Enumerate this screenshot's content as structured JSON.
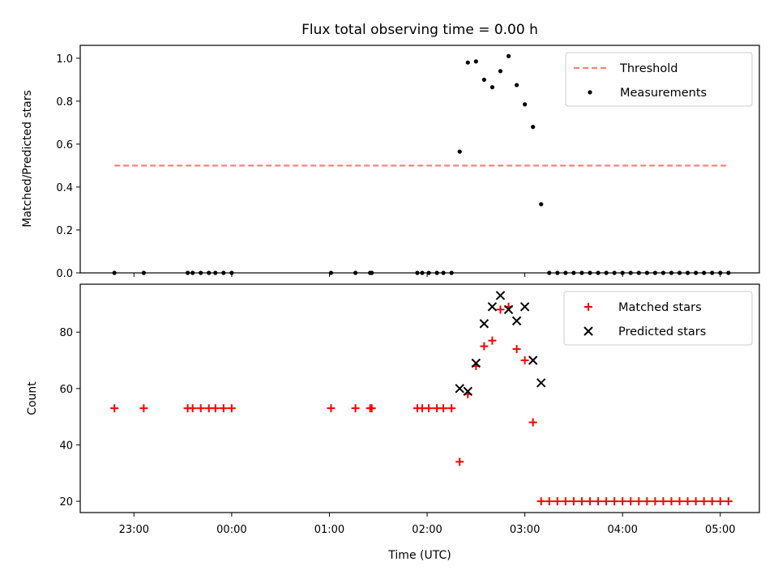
{
  "chart_data": [
    {
      "type": "scatter",
      "title": "Flux total observing time = 0.00 h",
      "xlabel": "",
      "ylabel": "Matched/Predicted stars",
      "ylim": [
        0,
        1.06
      ],
      "xlim": [
        "22:27",
        "05:24"
      ],
      "yticks": [
        0.0,
        0.2,
        0.4,
        0.6,
        0.8,
        1.0
      ],
      "ytick_labels": [
        "0.0",
        "0.2",
        "0.4",
        "0.6",
        "0.8",
        "1.0"
      ],
      "xticks": [
        "23:00",
        "00:00",
        "01:00",
        "02:00",
        "03:00",
        "04:00",
        "05:00"
      ],
      "show_xtick_labels": false,
      "legend_placement": "top-right",
      "series": [
        {
          "name": "Threshold",
          "kind": "line",
          "style": "dashed",
          "color": "#ff7f7f",
          "points": [
            {
              "x": "22:48",
              "y": 0.5
            },
            {
              "x": "05:05",
              "y": 0.5
            }
          ]
        },
        {
          "name": "Measurements",
          "kind": "scatter",
          "color": "#000000",
          "points": [
            {
              "x": "22:48",
              "y": 0
            },
            {
              "x": "23:06",
              "y": 0
            },
            {
              "x": "23:33",
              "y": 0
            },
            {
              "x": "23:36",
              "y": 0
            },
            {
              "x": "23:41",
              "y": 0
            },
            {
              "x": "23:46",
              "y": 0
            },
            {
              "x": "23:50",
              "y": 0
            },
            {
              "x": "23:55",
              "y": 0
            },
            {
              "x": "00:00",
              "y": 0
            },
            {
              "x": "01:01",
              "y": 0
            },
            {
              "x": "01:16",
              "y": 0
            },
            {
              "x": "01:25",
              "y": 0
            },
            {
              "x": "01:26",
              "y": 0
            },
            {
              "x": "01:54",
              "y": 0
            },
            {
              "x": "01:57",
              "y": 0
            },
            {
              "x": "02:01",
              "y": 0
            },
            {
              "x": "02:06",
              "y": 0
            },
            {
              "x": "02:10",
              "y": 0
            },
            {
              "x": "02:15",
              "y": 0
            },
            {
              "x": "02:20",
              "y": 0.565
            },
            {
              "x": "02:25",
              "y": 0.98
            },
            {
              "x": "02:30",
              "y": 0.985
            },
            {
              "x": "02:35",
              "y": 0.9
            },
            {
              "x": "02:40",
              "y": 0.865
            },
            {
              "x": "02:45",
              "y": 0.94
            },
            {
              "x": "02:50",
              "y": 1.01
            },
            {
              "x": "02:55",
              "y": 0.875
            },
            {
              "x": "03:00",
              "y": 0.785
            },
            {
              "x": "03:05",
              "y": 0.68
            },
            {
              "x": "03:10",
              "y": 0.32
            },
            {
              "x": "03:15",
              "y": 0
            },
            {
              "x": "03:20",
              "y": 0
            },
            {
              "x": "03:25",
              "y": 0
            },
            {
              "x": "03:30",
              "y": 0
            },
            {
              "x": "03:35",
              "y": 0
            },
            {
              "x": "03:40",
              "y": 0
            },
            {
              "x": "03:45",
              "y": 0
            },
            {
              "x": "03:50",
              "y": 0
            },
            {
              "x": "03:55",
              "y": 0
            },
            {
              "x": "04:00",
              "y": 0
            },
            {
              "x": "04:05",
              "y": 0
            },
            {
              "x": "04:10",
              "y": 0
            },
            {
              "x": "04:15",
              "y": 0
            },
            {
              "x": "04:20",
              "y": 0
            },
            {
              "x": "04:25",
              "y": 0
            },
            {
              "x": "04:30",
              "y": 0
            },
            {
              "x": "04:35",
              "y": 0
            },
            {
              "x": "04:40",
              "y": 0
            },
            {
              "x": "04:45",
              "y": 0
            },
            {
              "x": "04:50",
              "y": 0
            },
            {
              "x": "04:55",
              "y": 0
            },
            {
              "x": "05:00",
              "y": 0
            },
            {
              "x": "05:05",
              "y": 0
            }
          ]
        }
      ]
    },
    {
      "type": "scatter",
      "title": "",
      "xlabel": "Time (UTC)",
      "ylabel": "Count",
      "ylim": [
        16,
        97
      ],
      "xlim": [
        "22:27",
        "05:24"
      ],
      "yticks": [
        20,
        40,
        60,
        80
      ],
      "ytick_labels": [
        "20",
        "40",
        "60",
        "80"
      ],
      "xticks": [
        "23:00",
        "00:00",
        "01:00",
        "02:00",
        "03:00",
        "04:00",
        "05:00"
      ],
      "xtick_labels": [
        "23:00",
        "00:00",
        "01:00",
        "02:00",
        "03:00",
        "04:00",
        "05:00"
      ],
      "show_xtick_labels": true,
      "legend_placement": "top-right",
      "series": [
        {
          "name": "Matched stars",
          "kind": "scatter",
          "marker": "plus",
          "color": "#ff0000",
          "points": [
            {
              "x": "22:48",
              "y": 53
            },
            {
              "x": "23:06",
              "y": 53
            },
            {
              "x": "23:33",
              "y": 53
            },
            {
              "x": "23:36",
              "y": 53
            },
            {
              "x": "23:41",
              "y": 53
            },
            {
              "x": "23:46",
              "y": 53
            },
            {
              "x": "23:50",
              "y": 53
            },
            {
              "x": "23:55",
              "y": 53
            },
            {
              "x": "00:00",
              "y": 53
            },
            {
              "x": "01:01",
              "y": 53
            },
            {
              "x": "01:16",
              "y": 53
            },
            {
              "x": "01:25",
              "y": 53
            },
            {
              "x": "01:26",
              "y": 53
            },
            {
              "x": "01:54",
              "y": 53
            },
            {
              "x": "01:57",
              "y": 53
            },
            {
              "x": "02:01",
              "y": 53
            },
            {
              "x": "02:06",
              "y": 53
            },
            {
              "x": "02:10",
              "y": 53
            },
            {
              "x": "02:15",
              "y": 53
            },
            {
              "x": "02:20",
              "y": 34
            },
            {
              "x": "02:25",
              "y": 58
            },
            {
              "x": "02:30",
              "y": 68
            },
            {
              "x": "02:35",
              "y": 75
            },
            {
              "x": "02:40",
              "y": 77
            },
            {
              "x": "02:45",
              "y": 88
            },
            {
              "x": "02:50",
              "y": 89
            },
            {
              "x": "02:55",
              "y": 74
            },
            {
              "x": "03:00",
              "y": 70
            },
            {
              "x": "03:05",
              "y": 48
            },
            {
              "x": "03:10",
              "y": 20
            },
            {
              "x": "03:15",
              "y": 20
            },
            {
              "x": "03:20",
              "y": 20
            },
            {
              "x": "03:25",
              "y": 20
            },
            {
              "x": "03:30",
              "y": 20
            },
            {
              "x": "03:35",
              "y": 20
            },
            {
              "x": "03:40",
              "y": 20
            },
            {
              "x": "03:45",
              "y": 20
            },
            {
              "x": "03:50",
              "y": 20
            },
            {
              "x": "03:55",
              "y": 20
            },
            {
              "x": "04:00",
              "y": 20
            },
            {
              "x": "04:05",
              "y": 20
            },
            {
              "x": "04:10",
              "y": 20
            },
            {
              "x": "04:15",
              "y": 20
            },
            {
              "x": "04:20",
              "y": 20
            },
            {
              "x": "04:25",
              "y": 20
            },
            {
              "x": "04:30",
              "y": 20
            },
            {
              "x": "04:35",
              "y": 20
            },
            {
              "x": "04:40",
              "y": 20
            },
            {
              "x": "04:45",
              "y": 20
            },
            {
              "x": "04:50",
              "y": 20
            },
            {
              "x": "04:55",
              "y": 20
            },
            {
              "x": "05:00",
              "y": 20
            },
            {
              "x": "05:05",
              "y": 20
            }
          ]
        },
        {
          "name": "Predicted stars",
          "kind": "scatter",
          "marker": "x",
          "color": "#000000",
          "points": [
            {
              "x": "02:20",
              "y": 60
            },
            {
              "x": "02:25",
              "y": 59
            },
            {
              "x": "02:30",
              "y": 69
            },
            {
              "x": "02:35",
              "y": 83
            },
            {
              "x": "02:40",
              "y": 89
            },
            {
              "x": "02:45",
              "y": 93
            },
            {
              "x": "02:50",
              "y": 88
            },
            {
              "x": "02:55",
              "y": 84
            },
            {
              "x": "03:00",
              "y": 89
            },
            {
              "x": "03:05",
              "y": 70
            },
            {
              "x": "03:10",
              "y": 62
            }
          ]
        }
      ]
    }
  ]
}
